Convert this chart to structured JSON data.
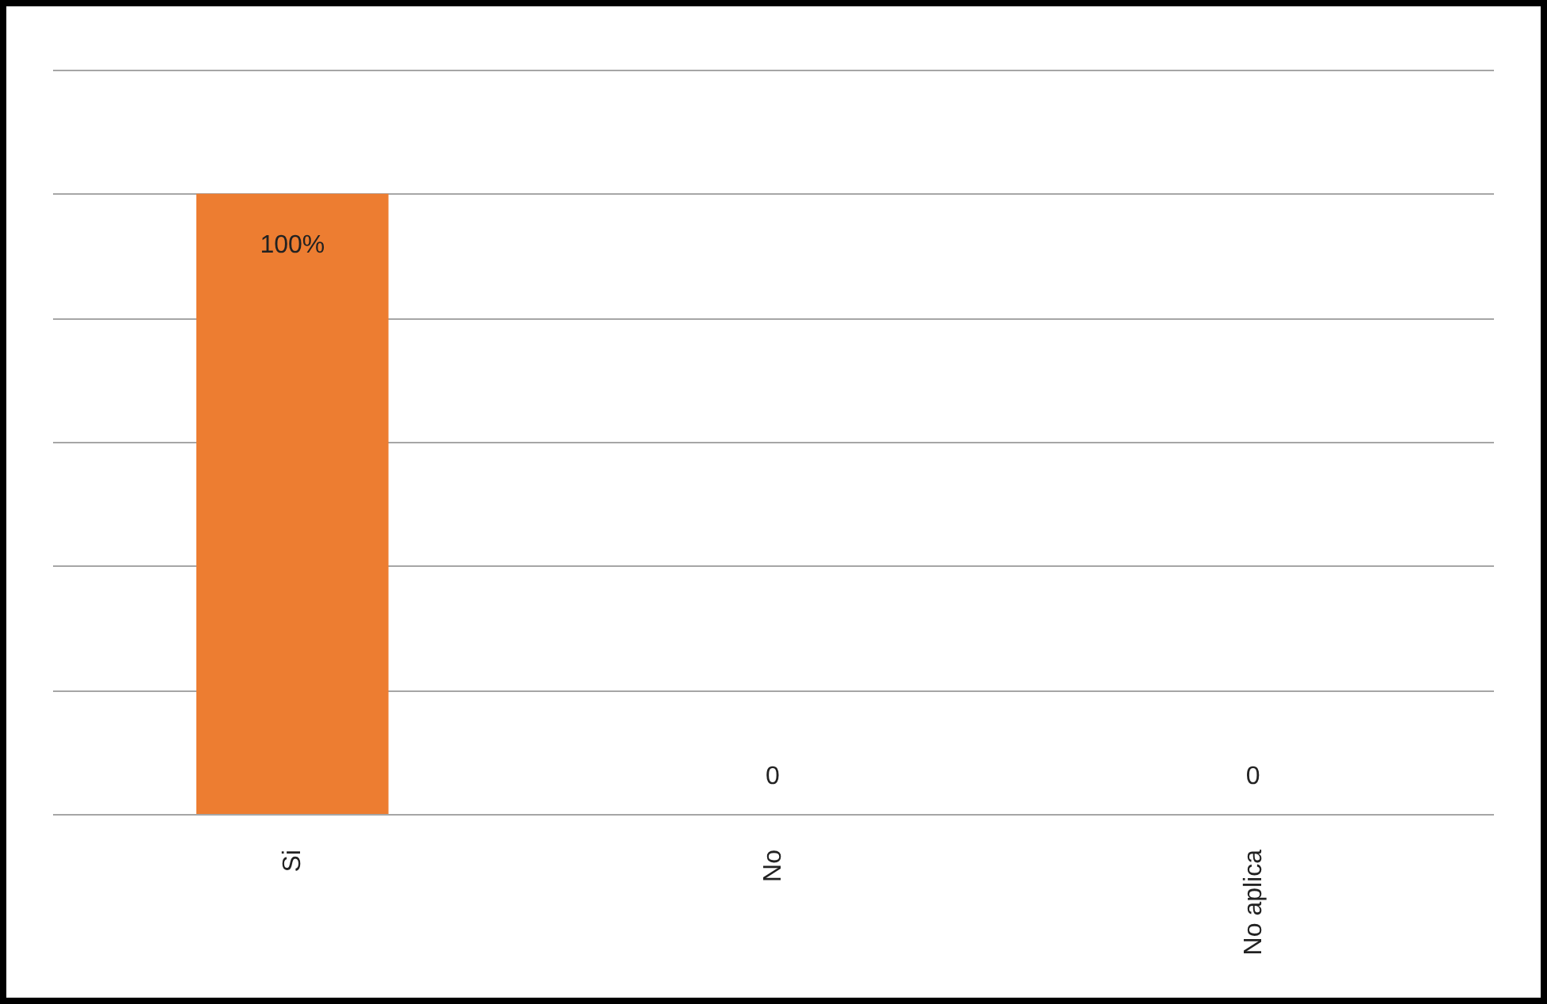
{
  "chart_data": {
    "type": "bar",
    "categories": [
      "Si",
      "No",
      "No aplica"
    ],
    "values": [
      100,
      0,
      0
    ],
    "color": "#ed7d31",
    "value_labels": [
      "100%",
      "0",
      "0"
    ],
    "ylim": [
      0,
      120
    ],
    "yticks": [
      {
        "value": 0,
        "label": null
      },
      {
        "value": 20,
        "label": null
      },
      {
        "value": 40,
        "label": null
      },
      {
        "value": 60,
        "label": null
      },
      {
        "value": 80,
        "label": null
      },
      {
        "value": 100,
        "label": null
      },
      {
        "value": 120,
        "label": null
      }
    ],
    "grid": "y",
    "tick_labels": "x"
  }
}
